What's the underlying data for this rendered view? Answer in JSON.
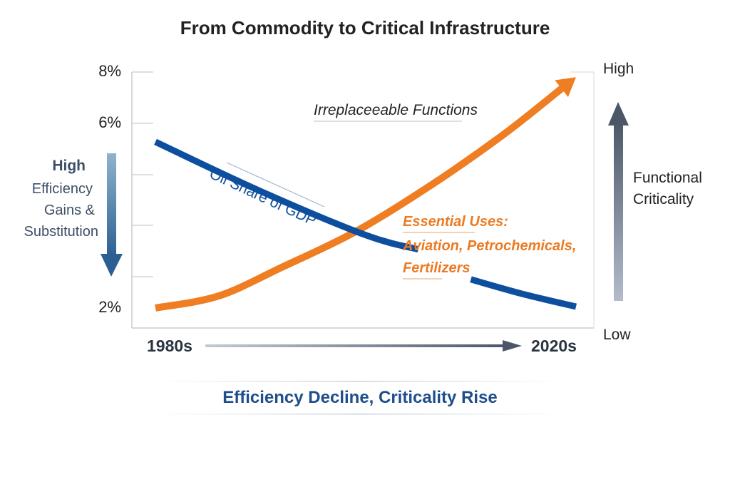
{
  "chart_data": {
    "type": "line",
    "title": "From Commodity to Critical Infrastructure",
    "subtitle": "Efficiency Decline, Criticality Rise",
    "xlabel": "",
    "x_ticks": [
      "1980s",
      "2020s"
    ],
    "xlim": [
      1980,
      2020
    ],
    "y_ticks": [
      {
        "value": 8,
        "label": "8%"
      },
      {
        "value": 6,
        "label": "6%"
      },
      {
        "value": 2,
        "label": "2%"
      }
    ],
    "ylim": [
      2,
      8
    ],
    "grid": true,
    "series": [
      {
        "name": "Oil Share of GDP",
        "color": "#0d4f9e",
        "segments": [
          [
            [
              1980,
              5.6
            ],
            [
              1990,
              4.53
            ],
            [
              2000,
              3.58
            ],
            [
              2005,
              3.27
            ]
          ],
          [
            [
              2010,
              2.62
            ],
            [
              2015,
              2.3
            ],
            [
              2020,
              2.03
            ]
          ]
        ]
      },
      {
        "name": "Irreplaceeable Functions",
        "color": "#ef7d22",
        "arrow": true,
        "segments": [
          [
            [
              1980,
              2.0
            ],
            [
              1986,
              2.26
            ],
            [
              1992,
              2.88
            ],
            [
              1999,
              3.65
            ],
            [
              2006,
              4.63
            ],
            [
              2013,
              5.74
            ],
            [
              2020,
              7.8
            ]
          ]
        ]
      }
    ],
    "annotations": {
      "oil_label": "Oil Share of GDP",
      "irreplaceable": "Irreplaceeable Functions",
      "essential_title": "Essential Uses:",
      "essential_line1": "Aviation, Petrochemicals,",
      "essential_line2": "Fertilizers"
    },
    "left_axis": {
      "high": "High",
      "line1": "Efficiency",
      "line2": "Gains &",
      "line3": "Substitution"
    },
    "right_axis": {
      "high": "High",
      "low": "Low",
      "line1": "Functional",
      "line2": "Criticality"
    }
  }
}
